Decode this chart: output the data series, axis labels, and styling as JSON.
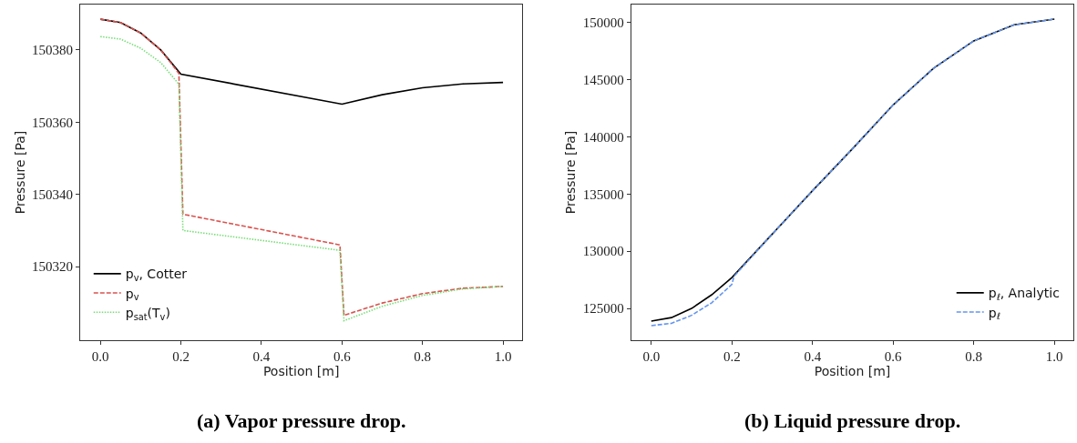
{
  "chart_data": [
    {
      "type": "line",
      "title": "(a) Vapor pressure drop.",
      "xlabel": "Position [m]",
      "ylabel": "Pressure [Pa]",
      "xlim": [
        -0.05,
        1.048
      ],
      "ylim": [
        150299.6,
        150392.6
      ],
      "xticks": [
        {
          "value": 0,
          "label": "0.0"
        },
        {
          "value": 0.2,
          "label": "0.2"
        },
        {
          "value": 0.4,
          "label": "0.4"
        },
        {
          "value": 0.6,
          "label": "0.6"
        },
        {
          "value": 0.8,
          "label": "0.8"
        },
        {
          "value": 1,
          "label": "1.0"
        }
      ],
      "yticks": [
        150320,
        150340,
        150360,
        150380
      ],
      "legend": "bottom left",
      "series": [
        {
          "name": "p$_{v}$, Cotter",
          "color": "#000000",
          "line_style": "solid",
          "x": [
            0,
            0.05,
            0.1,
            0.15,
            0.2,
            0.6,
            0.7,
            0.8,
            0.9,
            1.0
          ],
          "values": [
            150388.5,
            150387.6,
            150384.7,
            150380,
            150373.3,
            150365,
            150367.6,
            150369.5,
            150370.6,
            150371
          ]
        },
        {
          "name": "p$_{v}$",
          "color": "#d9534f",
          "line_style": "dashed",
          "x": [
            0,
            0.05,
            0.1,
            0.15,
            0.195,
            0.205,
            0.595,
            0.605,
            0.7,
            0.8,
            0.9,
            1.0
          ],
          "values": [
            150388.5,
            150387.6,
            150384.7,
            150380,
            150373.5,
            150334.5,
            150326,
            150306.5,
            150309.9,
            150312.5,
            150314,
            150314.5
          ]
        },
        {
          "name": "p$_{sat}$(T$_{v}$)",
          "color": "#77dd77",
          "line_style": "dotted",
          "x": [
            0,
            0.05,
            0.1,
            0.15,
            0.195,
            0.205,
            0.595,
            0.605,
            0.7,
            0.8,
            0.9,
            1.0
          ],
          "values": [
            150383.7,
            150383,
            150380.5,
            150376.5,
            150370.5,
            150330,
            150324.5,
            150305,
            150309,
            150312,
            150313.8,
            150314.5
          ]
        }
      ]
    },
    {
      "type": "line",
      "title": "(b) Liquid pressure drop.",
      "xlabel": "Position [m]",
      "ylabel": "Pressure [Pa]",
      "xlim": [
        -0.05,
        1.048
      ],
      "ylim": [
        122222,
        151587
      ],
      "xticks": [
        {
          "value": 0,
          "label": "0.0"
        },
        {
          "value": 0.2,
          "label": "0.2"
        },
        {
          "value": 0.4,
          "label": "0.4"
        },
        {
          "value": 0.6,
          "label": "0.6"
        },
        {
          "value": 0.8,
          "label": "0.8"
        },
        {
          "value": 1,
          "label": "1.0"
        }
      ],
      "yticks": [
        125000,
        130000,
        135000,
        140000,
        145000,
        150000
      ],
      "legend": "bottom right",
      "series": [
        {
          "name": "p$_{ℓ}$, Analytic",
          "color": "#000000",
          "line_style": "solid",
          "x": [
            0,
            0.05,
            0.1,
            0.15,
            0.2,
            0.3,
            0.4,
            0.5,
            0.6,
            0.7,
            0.8,
            0.9,
            1.0
          ],
          "values": [
            123900,
            124200,
            125000,
            126200,
            127700,
            131500,
            135300,
            139000,
            142800,
            146000,
            148400,
            149800,
            150300
          ]
        },
        {
          "name": "p$_{ℓ}$",
          "color": "#6495ed",
          "line_style": "dashed",
          "x": [
            0,
            0.05,
            0.1,
            0.15,
            0.2,
            0.205,
            0.3,
            0.4,
            0.5,
            0.6,
            0.7,
            0.8,
            0.9,
            1.0
          ],
          "values": [
            123500,
            123700,
            124400,
            125500,
            127100,
            127800,
            131500,
            135300,
            139000,
            142800,
            146000,
            148400,
            149800,
            150300
          ]
        }
      ]
    }
  ]
}
